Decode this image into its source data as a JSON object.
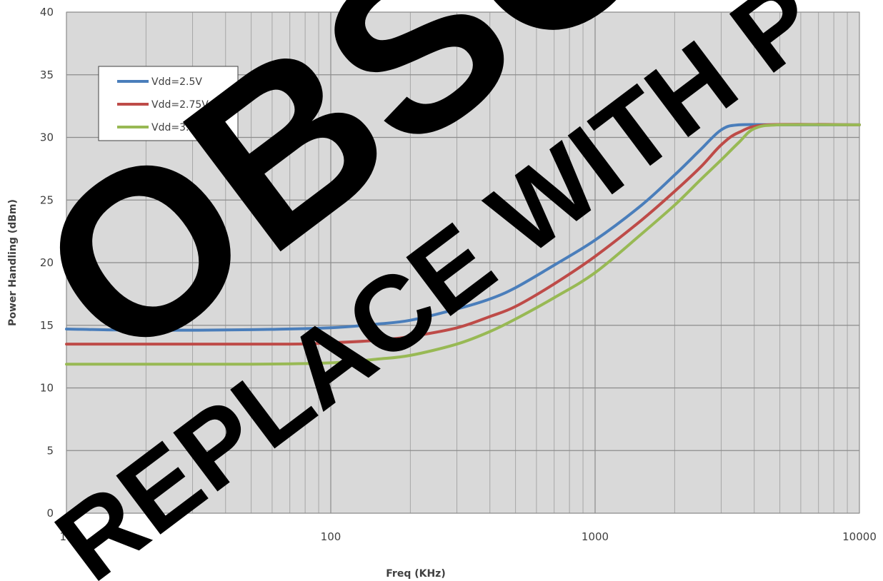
{
  "chart_data": {
    "type": "line",
    "xlabel": "Freq (KHz)",
    "ylabel": "Power Handling (dBm)",
    "xscale": "log",
    "xlim": [
      10,
      10000
    ],
    "ylim": [
      0,
      40
    ],
    "grid": true,
    "legend_position": "top-left",
    "x_ticks": [
      "10",
      "100",
      "1000",
      "10000"
    ],
    "y_ticks": [
      "0",
      "5",
      "10",
      "15",
      "20",
      "25",
      "30",
      "35",
      "40"
    ],
    "series": [
      {
        "name": "Vdd=2.5V",
        "color": "#4a7ebb",
        "points": [
          [
            10,
            14.7
          ],
          [
            20,
            14.6
          ],
          [
            50,
            14.65
          ],
          [
            100,
            14.8
          ],
          [
            150,
            15.1
          ],
          [
            200,
            15.4
          ],
          [
            300,
            16.3
          ],
          [
            400,
            17.1
          ],
          [
            500,
            18.0
          ],
          [
            700,
            19.8
          ],
          [
            1000,
            21.8
          ],
          [
            1500,
            24.6
          ],
          [
            2000,
            27.0
          ],
          [
            2500,
            29.0
          ],
          [
            3000,
            30.6
          ],
          [
            3500,
            31.0
          ],
          [
            5000,
            31.0
          ],
          [
            10000,
            31.0
          ]
        ]
      },
      {
        "name": "Vdd=2.75V",
        "color": "#be4b48",
        "points": [
          [
            10,
            13.5
          ],
          [
            30,
            13.5
          ],
          [
            70,
            13.5
          ],
          [
            100,
            13.6
          ],
          [
            150,
            13.8
          ],
          [
            200,
            14.1
          ],
          [
            300,
            14.8
          ],
          [
            400,
            15.7
          ],
          [
            500,
            16.5
          ],
          [
            700,
            18.3
          ],
          [
            1000,
            20.5
          ],
          [
            1500,
            23.4
          ],
          [
            2000,
            25.7
          ],
          [
            2500,
            27.6
          ],
          [
            3000,
            29.4
          ],
          [
            3500,
            30.4
          ],
          [
            4500,
            31.0
          ],
          [
            10000,
            31.0
          ]
        ]
      },
      {
        "name": "Vdd=3.0V",
        "color": "#98b954",
        "points": [
          [
            10,
            11.9
          ],
          [
            50,
            11.9
          ],
          [
            100,
            12.0
          ],
          [
            150,
            12.3
          ],
          [
            200,
            12.6
          ],
          [
            300,
            13.5
          ],
          [
            400,
            14.5
          ],
          [
            500,
            15.5
          ],
          [
            700,
            17.2
          ],
          [
            1000,
            19.2
          ],
          [
            1500,
            22.3
          ],
          [
            2000,
            24.6
          ],
          [
            2500,
            26.6
          ],
          [
            3000,
            28.2
          ],
          [
            3500,
            29.6
          ],
          [
            4000,
            30.7
          ],
          [
            5000,
            31.0
          ],
          [
            10000,
            31.0
          ]
        ]
      }
    ]
  },
  "watermark": {
    "line1": "OBSO",
    "line2": "REPLACE WITH P"
  }
}
